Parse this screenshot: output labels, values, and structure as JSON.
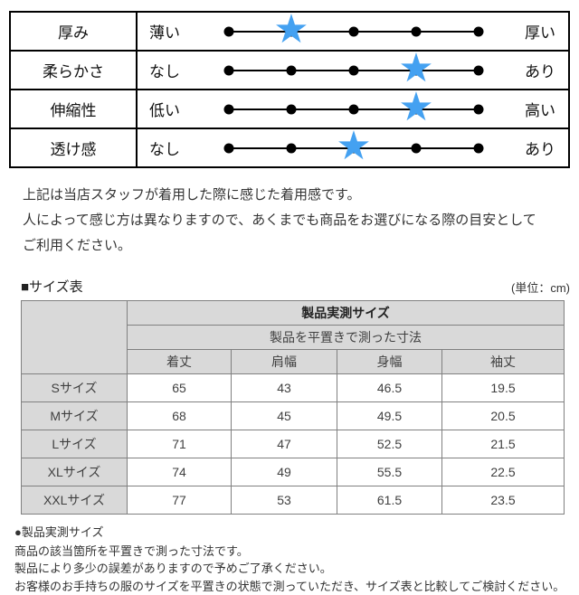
{
  "feel_table": {
    "star_color": "#44a1f1",
    "star_icon": "★",
    "rows": [
      {
        "label": "厚み",
        "low": "薄い",
        "high": "厚い",
        "rating": 2,
        "scale": 5
      },
      {
        "label": "柔らかさ",
        "low": "なし",
        "high": "あり",
        "rating": 4,
        "scale": 5
      },
      {
        "label": "伸縮性",
        "low": "低い",
        "high": "高い",
        "rating": 4,
        "scale": 5
      },
      {
        "label": "透け感",
        "low": "なし",
        "high": "あり",
        "rating": 3,
        "scale": 5
      }
    ]
  },
  "notes": [
    "上記は当店スタッフが着用した際に感じた着用感です。",
    "人によって感じ方は異なりますので、あくまでも商品をお選びになる際の目安として",
    "ご利用ください。"
  ],
  "size_section": {
    "heading": "■サイズ表",
    "unit": "(単位：cm)",
    "table": {
      "header_main": "製品実測サイズ",
      "header_sub": "製品を平置きで測った寸法",
      "columns": [
        "着丈",
        "肩幅",
        "身幅",
        "袖丈"
      ],
      "rows": [
        {
          "size": "Sサイズ",
          "values": [
            "65",
            "43",
            "46.5",
            "19.5"
          ]
        },
        {
          "size": "Mサイズ",
          "values": [
            "68",
            "45",
            "49.5",
            "20.5"
          ]
        },
        {
          "size": "Lサイズ",
          "values": [
            "71",
            "47",
            "52.5",
            "21.5"
          ]
        },
        {
          "size": "XLサイズ",
          "values": [
            "74",
            "49",
            "55.5",
            "22.5"
          ]
        },
        {
          "size": "XXLサイズ",
          "values": [
            "77",
            "53",
            "61.5",
            "23.5"
          ]
        }
      ]
    }
  },
  "footer_notes": {
    "title": "●製品実測サイズ",
    "lines": [
      "商品の該当箇所を平置きで測った寸法です。",
      "製品により多少の誤差がありますので予めご了承ください。",
      "お客様のお手持ちの服のサイズを平置きの状態で測っていただき、サイズ表と比較してご検討ください。"
    ]
  }
}
